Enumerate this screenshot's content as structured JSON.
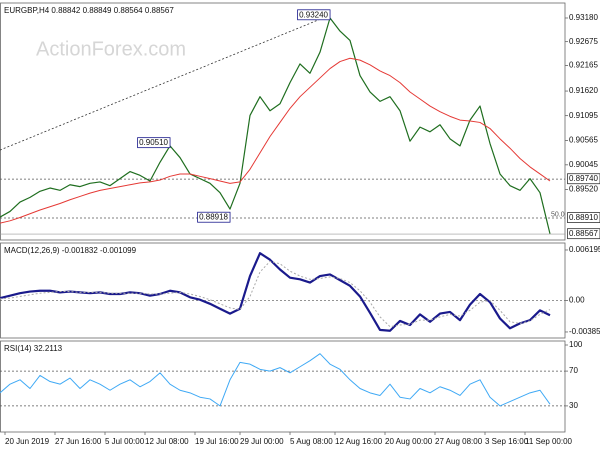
{
  "chart_data": [
    {
      "type": "line",
      "title": "EURGBP,H4 0.88842 0.88849 0.88564 0.88567",
      "watermark": "ActionForex.com",
      "x": [
        0,
        2,
        4,
        6,
        8,
        10,
        12,
        14,
        16,
        18,
        20,
        22,
        24,
        26,
        28,
        30,
        32,
        34,
        36,
        38,
        40,
        42,
        44,
        46,
        48,
        50,
        52,
        54,
        56,
        58,
        60,
        62,
        64,
        66,
        68,
        70,
        72,
        74,
        76,
        78,
        80,
        82,
        84,
        86,
        88,
        90,
        92,
        94,
        96,
        98,
        100,
        102,
        104,
        106,
        108,
        110
      ],
      "xlim": [
        0,
        113
      ],
      "ylim": [
        0.8844,
        0.935
      ],
      "yticks": [
        {
          "value": 0.9318,
          "label": "0.93180"
        },
        0.92675,
        0.92165,
        {
          "value": 0.9162,
          "label": "0.91620"
        },
        0.91095,
        0.90565,
        0.90045,
        {
          "value": 0.8952,
          "label": "0.89520"
        }
      ],
      "series": [
        {
          "color": "#1f6e1f",
          "width": 1.2,
          "style": "solid",
          "values": [
            0.8893,
            0.8905,
            0.8925,
            0.8935,
            0.8948,
            0.8955,
            0.895,
            0.8962,
            0.8958,
            0.8965,
            0.8968,
            0.896,
            0.8975,
            0.899,
            0.8982,
            0.897,
            0.901,
            0.9045,
            0.902,
            0.8985,
            0.8975,
            0.8965,
            0.8945,
            0.891,
            0.8965,
            0.911,
            0.915,
            0.912,
            0.9135,
            0.918,
            0.922,
            0.92,
            0.9245,
            0.9318,
            0.929,
            0.927,
            0.9195,
            0.916,
            0.914,
            0.915,
            0.912,
            0.9055,
            0.9085,
            0.9075,
            0.909,
            0.906,
            0.9045,
            0.91,
            0.913,
            0.905,
            0.8985,
            0.896,
            0.895,
            0.8975,
            0.8945,
            0.8857
          ]
        },
        {
          "color": "#e53935",
          "width": 1,
          "style": "solid",
          "values": [
            0.888,
            0.8885,
            0.8892,
            0.89,
            0.8908,
            0.8915,
            0.8922,
            0.893,
            0.8937,
            0.8944,
            0.895,
            0.8954,
            0.8958,
            0.8962,
            0.8966,
            0.8968,
            0.8972,
            0.898,
            0.8985,
            0.8985,
            0.898,
            0.8975,
            0.897,
            0.8965,
            0.8968,
            0.8995,
            0.903,
            0.9065,
            0.9095,
            0.9125,
            0.915,
            0.917,
            0.919,
            0.921,
            0.9225,
            0.9232,
            0.9228,
            0.9218,
            0.9205,
            0.9195,
            0.918,
            0.916,
            0.9145,
            0.913,
            0.9118,
            0.9108,
            0.91,
            0.9098,
            0.9095,
            0.9082,
            0.906,
            0.904,
            0.9018,
            0.9,
            0.8985,
            0.897
          ]
        },
        {
          "color": "#333333",
          "width": 0.8,
          "style": "dotted",
          "x": [
            0,
            66
          ],
          "values": [
            0.9036,
            0.9324
          ]
        }
      ],
      "levels": [
        {
          "value": 0.8974,
          "label": "0.89740"
        },
        {
          "value": 0.8891,
          "label": "0.88910"
        }
      ],
      "last_price": {
        "value": 0.88567,
        "label": "0.88567"
      },
      "fib_label": {
        "value": 0.8898,
        "label": "50.0"
      },
      "callouts": [
        {
          "x": 66,
          "value": 0.9324,
          "label": "0.93240"
        },
        {
          "x": 34,
          "value": 0.9051,
          "label": "0.90510"
        },
        {
          "x": 46,
          "value": 0.88918,
          "label": "0.88918"
        }
      ]
    },
    {
      "type": "line",
      "title": "MACD(12,26,9) -0.001832 -0.001099",
      "x": [
        0,
        2,
        4,
        6,
        8,
        10,
        12,
        14,
        16,
        18,
        20,
        22,
        24,
        26,
        28,
        30,
        32,
        34,
        36,
        38,
        40,
        42,
        44,
        46,
        48,
        50,
        52,
        54,
        56,
        58,
        60,
        62,
        64,
        66,
        68,
        70,
        72,
        74,
        76,
        78,
        80,
        82,
        84,
        86,
        88,
        90,
        92,
        94,
        96,
        98,
        100,
        102,
        104,
        106,
        108,
        110
      ],
      "xlim": [
        0,
        113
      ],
      "ylim": [
        -0.00459,
        0.00705
      ],
      "yticks": [
        0.006195,
        {
          "value": 0,
          "label": "0.00"
        },
        -0.003851
      ],
      "levels": [
        {
          "value": 0
        }
      ],
      "series": [
        {
          "color": "#1a1a8c",
          "width": 2.2,
          "style": "solid",
          "values": [
            0.0003,
            0.0006,
            0.0009,
            0.0011,
            0.0012,
            0.0012,
            0.001,
            0.0011,
            0.001,
            0.0009,
            0.001,
            0.0008,
            0.0008,
            0.001,
            0.0009,
            0.0006,
            0.0008,
            0.0012,
            0.001,
            0.0004,
            0.0001,
            -0.0004,
            -0.001,
            -0.0016,
            -0.001,
            0.003,
            0.0058,
            0.005,
            0.0038,
            0.0028,
            0.0026,
            0.0022,
            0.003,
            0.0032,
            0.0025,
            0.0018,
            0.0005,
            -0.0015,
            -0.0036,
            -0.0037,
            -0.0025,
            -0.003,
            -0.0017,
            -0.0026,
            -0.0016,
            -0.0014,
            -0.0024,
            -0.0005,
            0.0008,
            -0.0002,
            -0.0022,
            -0.0034,
            -0.0028,
            -0.0024,
            -0.0012,
            -0.0018
          ]
        },
        {
          "color": "#aaaaaa",
          "width": 1,
          "style": "dotted",
          "values": [
            0.0002,
            0.0003,
            0.0005,
            0.0007,
            0.0009,
            0.001,
            0.0011,
            0.0011,
            0.001,
            0.001,
            0.001,
            0.0009,
            0.0009,
            0.0009,
            0.0009,
            0.0008,
            0.0008,
            0.0009,
            0.001,
            0.0008,
            0.0005,
            0.0001,
            -0.0004,
            -0.0009,
            -0.0011,
            0.0005,
            0.0035,
            0.0048,
            0.0045,
            0.0036,
            0.003,
            0.0026,
            0.0027,
            0.0029,
            0.0027,
            0.0022,
            0.0012,
            -0.0002,
            -0.002,
            -0.0032,
            -0.003,
            -0.0029,
            -0.0024,
            -0.0024,
            -0.002,
            -0.0017,
            -0.0019,
            -0.0012,
            -0.0002,
            0,
            -0.0012,
            -0.0026,
            -0.0028,
            -0.0025,
            -0.0017,
            -0.0011
          ]
        }
      ]
    },
    {
      "type": "line",
      "title": "RSI(14) 32.2113",
      "x": [
        0,
        2,
        4,
        6,
        8,
        10,
        12,
        14,
        16,
        18,
        20,
        22,
        24,
        26,
        28,
        30,
        32,
        34,
        36,
        38,
        40,
        42,
        44,
        46,
        48,
        50,
        52,
        54,
        56,
        58,
        60,
        62,
        64,
        66,
        68,
        70,
        72,
        74,
        76,
        78,
        80,
        82,
        84,
        86,
        88,
        90,
        92,
        94,
        96,
        98,
        100,
        102,
        104,
        106,
        108,
        110
      ],
      "xlim": [
        0,
        113
      ],
      "ylim": [
        0,
        104.6
      ],
      "yticks": [
        100,
        70,
        30
      ],
      "levels": [
        {
          "value": 70
        },
        {
          "value": 30
        }
      ],
      "xticks": [
        {
          "value": 1,
          "label": "20 Jun 2019"
        },
        {
          "value": 11,
          "label": "27 Jun 16:00"
        },
        {
          "value": 21,
          "label": "5 Jul 00:00"
        },
        {
          "value": 29,
          "label": "12 Jul 08:00"
        },
        {
          "value": 39,
          "label": "19 Jul 16:00"
        },
        {
          "value": 48,
          "label": "29 Jul 00:00"
        },
        {
          "value": 58,
          "label": "5 Aug 08:00"
        },
        {
          "value": 67,
          "label": "12 Aug 16:00"
        },
        {
          "value": 77,
          "label": "20 Aug 00:00"
        },
        {
          "value": 87,
          "label": "27 Aug 08:00"
        },
        {
          "value": 97,
          "label": "3 Sep 16:00"
        },
        {
          "value": 105,
          "label": "11 Sep 00:00"
        }
      ],
      "series": [
        {
          "color": "#3fa9f5",
          "width": 1,
          "style": "solid",
          "values": [
            45,
            55,
            60,
            50,
            65,
            58,
            55,
            62,
            50,
            60,
            55,
            48,
            55,
            60,
            52,
            58,
            68,
            55,
            48,
            45,
            40,
            38,
            30,
            60,
            80,
            78,
            72,
            70,
            74,
            68,
            75,
            82,
            90,
            78,
            72,
            60,
            50,
            45,
            42,
            55,
            40,
            38,
            50,
            45,
            52,
            48,
            42,
            55,
            60,
            40,
            30,
            35,
            40,
            45,
            48,
            32
          ]
        }
      ]
    }
  ]
}
